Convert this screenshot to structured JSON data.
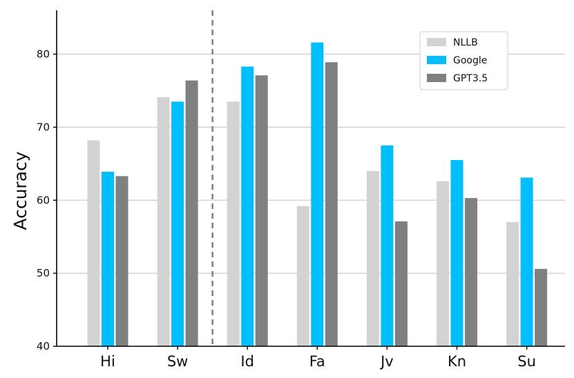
{
  "chart_data": {
    "type": "bar",
    "title": "",
    "xlabel": "",
    "ylabel": "Accuracy",
    "ylim": [
      40,
      86
    ],
    "yticks": [
      40,
      50,
      60,
      70,
      80
    ],
    "categories": [
      "Hi",
      "Sw",
      "Id",
      "Fa",
      "Jv",
      "Kn",
      "Su"
    ],
    "series": [
      {
        "name": "NLLB",
        "color": "#d3d3d3",
        "values": [
          68.2,
          74.1,
          73.5,
          59.2,
          64.0,
          62.6,
          57.0
        ]
      },
      {
        "name": "Google",
        "color": "#00bfff",
        "values": [
          63.9,
          73.5,
          78.3,
          81.6,
          67.5,
          65.5,
          63.1
        ]
      },
      {
        "name": "GPT3.5",
        "color": "#808080",
        "values": [
          63.3,
          76.4,
          77.1,
          78.9,
          57.1,
          60.3,
          50.6
        ]
      }
    ],
    "separator_after_category": "Sw",
    "grid": "horizontal",
    "legend_position": "top-right"
  }
}
